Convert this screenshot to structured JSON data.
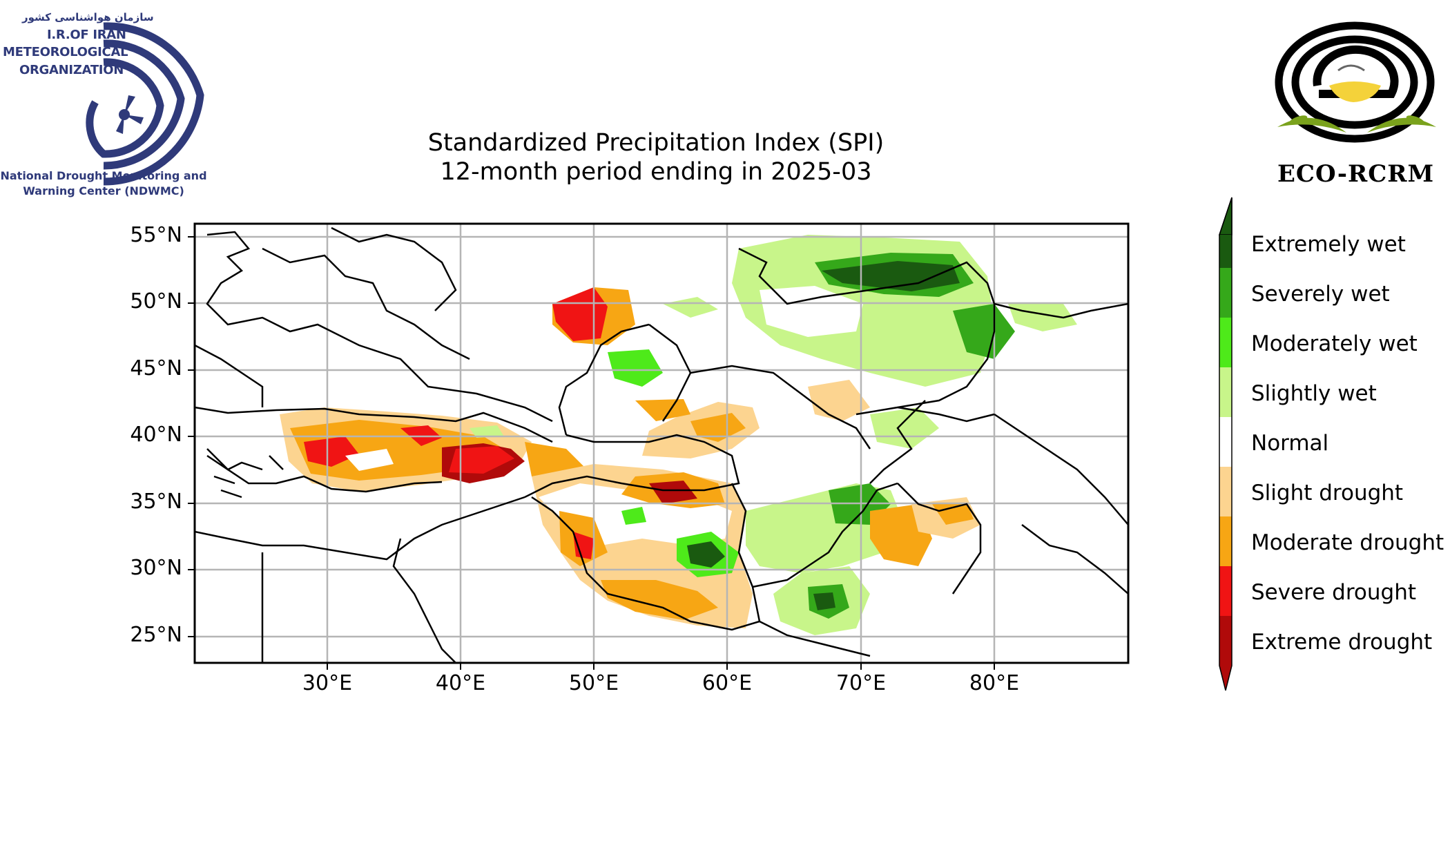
{
  "title": {
    "line1": "Standardized Precipitation Index (SPI)",
    "line2": "12-month period ending in 2025-03"
  },
  "logo_left": {
    "persian": "سازمان هواشناسی کشور",
    "line1": "I.R.OF IRAN",
    "line2": "METEOROLOGICAL",
    "line3": "ORGANIZATION",
    "caption_line1": "National Drought Monitoring and",
    "caption_line2": "Warning Center (NDWMC)",
    "color": "#2f3a7a"
  },
  "logo_right": {
    "label": "ECO-RCRM"
  },
  "axes": {
    "lat_ticks": [
      "55°N",
      "50°N",
      "45°N",
      "40°N",
      "35°N",
      "30°N",
      "25°N"
    ],
    "lon_ticks": [
      "30°E",
      "40°E",
      "50°E",
      "60°E",
      "70°E",
      "80°E"
    ],
    "lat_range": [
      23,
      56
    ],
    "lon_range": [
      20,
      90
    ],
    "grid": true
  },
  "legend": {
    "orientation": "vertical colorbar",
    "placement": "right",
    "classes": [
      {
        "label": "Extremely wet",
        "color": "#1a5a10"
      },
      {
        "label": "Severely wet",
        "color": "#35a81a"
      },
      {
        "label": "Moderately wet",
        "color": "#4eea1a"
      },
      {
        "label": "Slightly wet",
        "color": "#c8f58a"
      },
      {
        "label": "Normal",
        "color": "#ffffff"
      },
      {
        "label": "Slight drought",
        "color": "#fcd490"
      },
      {
        "label": "Moderate drought",
        "color": "#f7a614"
      },
      {
        "label": "Severe drought",
        "color": "#f01414"
      },
      {
        "label": "Extreme drought",
        "color": "#b00a0a"
      }
    ]
  }
}
